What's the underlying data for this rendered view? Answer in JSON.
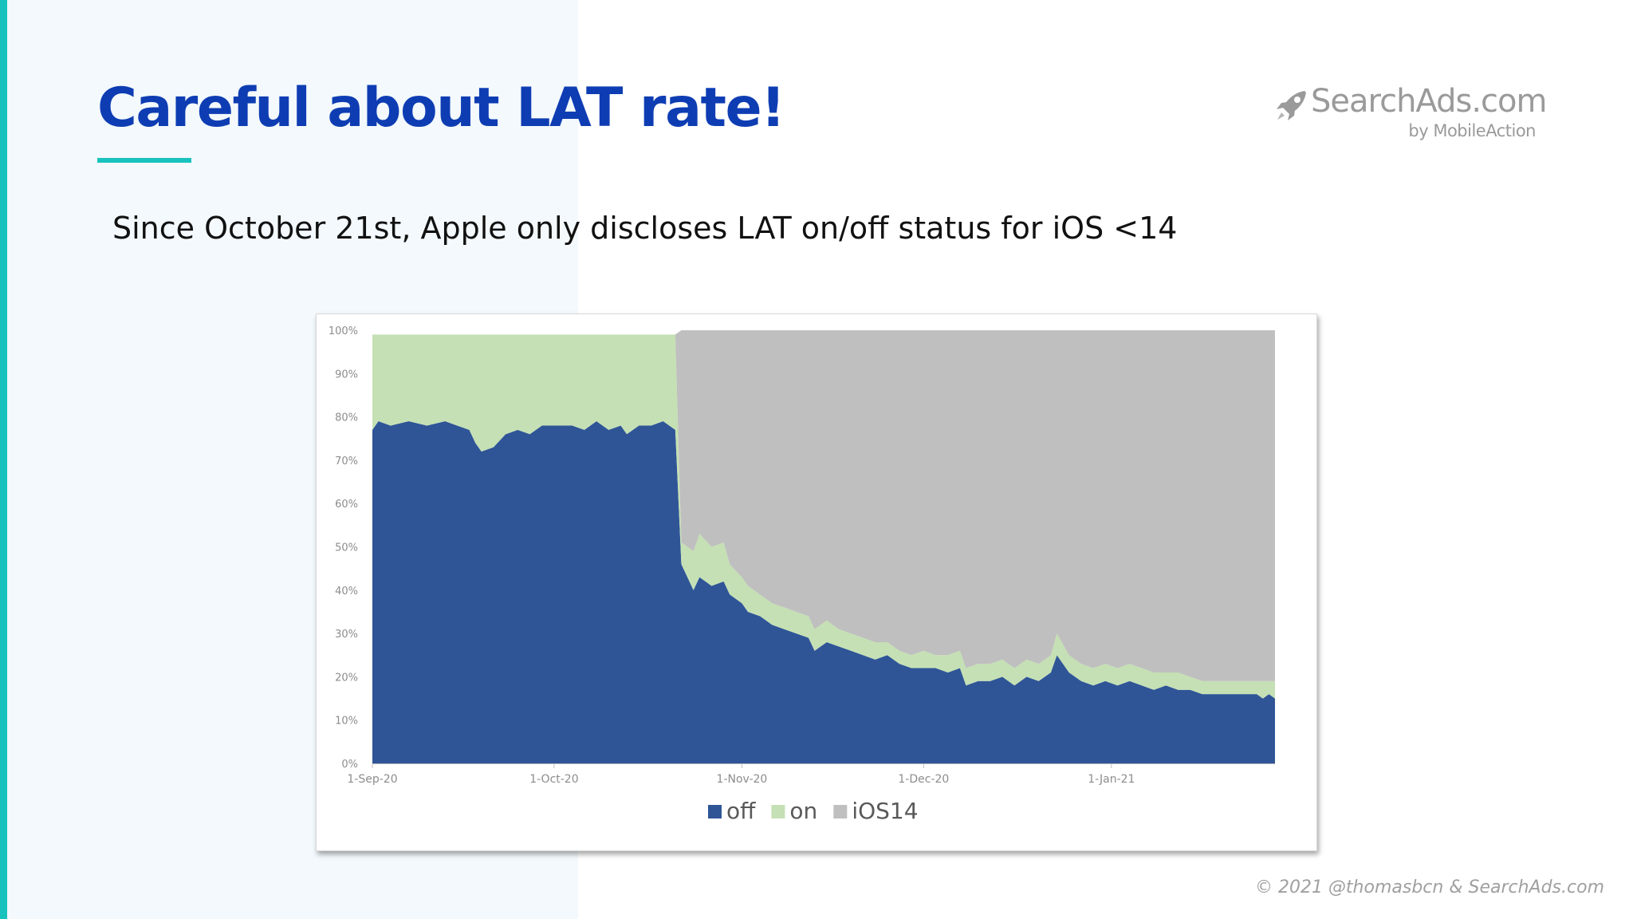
{
  "slide": {
    "title": "Careful about LAT rate!",
    "subtitle": "Since October 21st, Apple only discloses LAT on/off status for iOS <14",
    "footer": "© 2021 @thomasbcn & SearchAds.com"
  },
  "logo": {
    "main": "SearchAds.com",
    "sub": "by MobileAction",
    "icon": "rocket-icon"
  },
  "colors": {
    "title": "#0e3db3",
    "accent": "#19c3bd",
    "off": "#2f5597",
    "on": "#c5e0b4",
    "ios14": "#bfbfbf"
  },
  "chart_data": {
    "type": "area",
    "stacked": true,
    "x_labels": [
      "1-Sep-20",
      "1-Oct-20",
      "1-Nov-20",
      "1-Dec-20",
      "1-Jan-21"
    ],
    "y_ticks": [
      "0%",
      "10%",
      "20%",
      "30%",
      "40%",
      "50%",
      "60%",
      "70%",
      "80%",
      "90%",
      "100%"
    ],
    "ylim": [
      0,
      100
    ],
    "x_start": "1-Sep-20",
    "x_end": "28-Jan-21",
    "legend": [
      "off",
      "on",
      "iOS14"
    ],
    "legend_position": "bottom",
    "grid": false,
    "series": [
      {
        "name": "off",
        "color": "#2f5597",
        "points": [
          [
            "1-Sep-20",
            77
          ],
          [
            "2-Sep-20",
            79
          ],
          [
            "4-Sep-20",
            78
          ],
          [
            "7-Sep-20",
            79
          ],
          [
            "10-Sep-20",
            78
          ],
          [
            "13-Sep-20",
            79
          ],
          [
            "15-Sep-20",
            78
          ],
          [
            "17-Sep-20",
            77
          ],
          [
            "18-Sep-20",
            74
          ],
          [
            "19-Sep-20",
            72
          ],
          [
            "21-Sep-20",
            73
          ],
          [
            "23-Sep-20",
            76
          ],
          [
            "25-Sep-20",
            77
          ],
          [
            "27-Sep-20",
            76
          ],
          [
            "29-Sep-20",
            78
          ],
          [
            "1-Oct-20",
            78
          ],
          [
            "4-Oct-20",
            78
          ],
          [
            "6-Oct-20",
            77
          ],
          [
            "8-Oct-20",
            79
          ],
          [
            "10-Oct-20",
            77
          ],
          [
            "12-Oct-20",
            78
          ],
          [
            "13-Oct-20",
            76
          ],
          [
            "15-Oct-20",
            78
          ],
          [
            "17-Oct-20",
            78
          ],
          [
            "19-Oct-20",
            79
          ],
          [
            "21-Oct-20",
            77
          ],
          [
            "22-Oct-20",
            46
          ],
          [
            "24-Oct-20",
            40
          ],
          [
            "25-Oct-20",
            43
          ],
          [
            "27-Oct-20",
            41
          ],
          [
            "29-Oct-20",
            42
          ],
          [
            "30-Oct-20",
            39
          ],
          [
            "1-Nov-20",
            37
          ],
          [
            "2-Nov-20",
            35
          ],
          [
            "4-Nov-20",
            34
          ],
          [
            "6-Nov-20",
            32
          ],
          [
            "8-Nov-20",
            31
          ],
          [
            "10-Nov-20",
            30
          ],
          [
            "12-Nov-20",
            29
          ],
          [
            "13-Nov-20",
            26
          ],
          [
            "15-Nov-20",
            28
          ],
          [
            "17-Nov-20",
            27
          ],
          [
            "19-Nov-20",
            26
          ],
          [
            "21-Nov-20",
            25
          ],
          [
            "23-Nov-20",
            24
          ],
          [
            "25-Nov-20",
            25
          ],
          [
            "27-Nov-20",
            23
          ],
          [
            "29-Nov-20",
            22
          ],
          [
            "1-Dec-20",
            22
          ],
          [
            "3-Dec-20",
            22
          ],
          [
            "5-Dec-20",
            21
          ],
          [
            "7-Dec-20",
            22
          ],
          [
            "8-Dec-20",
            18
          ],
          [
            "10-Dec-20",
            19
          ],
          [
            "12-Dec-20",
            19
          ],
          [
            "14-Dec-20",
            20
          ],
          [
            "16-Dec-20",
            18
          ],
          [
            "18-Dec-20",
            20
          ],
          [
            "20-Dec-20",
            19
          ],
          [
            "22-Dec-20",
            21
          ],
          [
            "23-Dec-20",
            25
          ],
          [
            "25-Dec-20",
            21
          ],
          [
            "27-Dec-20",
            19
          ],
          [
            "29-Dec-20",
            18
          ],
          [
            "31-Dec-20",
            19
          ],
          [
            "2-Jan-21",
            18
          ],
          [
            "4-Jan-21",
            19
          ],
          [
            "6-Jan-21",
            18
          ],
          [
            "8-Jan-21",
            17
          ],
          [
            "10-Jan-21",
            18
          ],
          [
            "12-Jan-21",
            17
          ],
          [
            "14-Jan-21",
            17
          ],
          [
            "16-Jan-21",
            16
          ],
          [
            "18-Jan-21",
            16
          ],
          [
            "20-Jan-21",
            16
          ],
          [
            "22-Jan-21",
            16
          ],
          [
            "24-Jan-21",
            16
          ],
          [
            "25-Jan-21",
            16
          ],
          [
            "26-Jan-21",
            15
          ],
          [
            "27-Jan-21",
            16
          ],
          [
            "28-Jan-21",
            15
          ]
        ]
      },
      {
        "name": "on",
        "color": "#c5e0b4",
        "points": [
          [
            "1-Sep-20",
            22
          ],
          [
            "2-Sep-20",
            20
          ],
          [
            "4-Sep-20",
            21
          ],
          [
            "7-Sep-20",
            20
          ],
          [
            "10-Sep-20",
            21
          ],
          [
            "13-Sep-20",
            20
          ],
          [
            "15-Sep-20",
            21
          ],
          [
            "17-Sep-20",
            22
          ],
          [
            "18-Sep-20",
            25
          ],
          [
            "19-Sep-20",
            27
          ],
          [
            "21-Sep-20",
            26
          ],
          [
            "23-Sep-20",
            23
          ],
          [
            "25-Sep-20",
            22
          ],
          [
            "27-Sep-20",
            23
          ],
          [
            "29-Sep-20",
            21
          ],
          [
            "1-Oct-20",
            21
          ],
          [
            "4-Oct-20",
            21
          ],
          [
            "6-Oct-20",
            22
          ],
          [
            "8-Oct-20",
            20
          ],
          [
            "10-Oct-20",
            22
          ],
          [
            "12-Oct-20",
            21
          ],
          [
            "13-Oct-20",
            23
          ],
          [
            "15-Oct-20",
            21
          ],
          [
            "17-Oct-20",
            21
          ],
          [
            "19-Oct-20",
            20
          ],
          [
            "21-Oct-20",
            22
          ],
          [
            "22-Oct-20",
            5
          ],
          [
            "24-Oct-20",
            9
          ],
          [
            "25-Oct-20",
            10
          ],
          [
            "27-Oct-20",
            9
          ],
          [
            "29-Oct-20",
            9
          ],
          [
            "30-Oct-20",
            7
          ],
          [
            "1-Nov-20",
            6
          ],
          [
            "2-Nov-20",
            6
          ],
          [
            "4-Nov-20",
            5
          ],
          [
            "6-Nov-20",
            5
          ],
          [
            "8-Nov-20",
            5
          ],
          [
            "10-Nov-20",
            5
          ],
          [
            "12-Nov-20",
            5
          ],
          [
            "13-Nov-20",
            5
          ],
          [
            "15-Nov-20",
            5
          ],
          [
            "17-Nov-20",
            4
          ],
          [
            "19-Nov-20",
            4
          ],
          [
            "21-Nov-20",
            4
          ],
          [
            "23-Nov-20",
            4
          ],
          [
            "25-Nov-20",
            3
          ],
          [
            "27-Nov-20",
            3
          ],
          [
            "29-Nov-20",
            3
          ],
          [
            "1-Dec-20",
            4
          ],
          [
            "3-Dec-20",
            3
          ],
          [
            "5-Dec-20",
            4
          ],
          [
            "7-Dec-20",
            4
          ],
          [
            "8-Dec-20",
            4
          ],
          [
            "10-Dec-20",
            4
          ],
          [
            "12-Dec-20",
            4
          ],
          [
            "14-Dec-20",
            4
          ],
          [
            "16-Dec-20",
            4
          ],
          [
            "18-Dec-20",
            4
          ],
          [
            "20-Dec-20",
            4
          ],
          [
            "22-Dec-20",
            4
          ],
          [
            "23-Dec-20",
            5
          ],
          [
            "25-Dec-20",
            4
          ],
          [
            "27-Dec-20",
            4
          ],
          [
            "29-Dec-20",
            4
          ],
          [
            "31-Dec-20",
            4
          ],
          [
            "2-Jan-21",
            4
          ],
          [
            "4-Jan-21",
            4
          ],
          [
            "6-Jan-21",
            4
          ],
          [
            "8-Jan-21",
            4
          ],
          [
            "10-Jan-21",
            3
          ],
          [
            "12-Jan-21",
            4
          ],
          [
            "14-Jan-21",
            3
          ],
          [
            "16-Jan-21",
            3
          ],
          [
            "18-Jan-21",
            3
          ],
          [
            "20-Jan-21",
            3
          ],
          [
            "22-Jan-21",
            3
          ],
          [
            "24-Jan-21",
            3
          ],
          [
            "25-Jan-21",
            3
          ],
          [
            "26-Jan-21",
            4
          ],
          [
            "27-Jan-21",
            3
          ],
          [
            "28-Jan-21",
            4
          ]
        ]
      },
      {
        "name": "iOS14",
        "color": "#bfbfbf",
        "points": [
          [
            "1-Sep-20",
            0
          ],
          [
            "21-Oct-20",
            0
          ],
          [
            "22-Oct-20",
            49
          ],
          [
            "24-Oct-20",
            51
          ],
          [
            "25-Oct-20",
            47
          ],
          [
            "27-Oct-20",
            50
          ],
          [
            "29-Oct-20",
            49
          ],
          [
            "30-Oct-20",
            54
          ],
          [
            "1-Nov-20",
            57
          ],
          [
            "2-Nov-20",
            59
          ],
          [
            "4-Nov-20",
            61
          ],
          [
            "6-Nov-20",
            63
          ],
          [
            "8-Nov-20",
            64
          ],
          [
            "10-Nov-20",
            65
          ],
          [
            "12-Nov-20",
            66
          ],
          [
            "13-Nov-20",
            69
          ],
          [
            "15-Nov-20",
            67
          ],
          [
            "17-Nov-20",
            69
          ],
          [
            "19-Nov-20",
            70
          ],
          [
            "21-Nov-20",
            71
          ],
          [
            "23-Nov-20",
            72
          ],
          [
            "25-Nov-20",
            72
          ],
          [
            "27-Nov-20",
            74
          ],
          [
            "29-Nov-20",
            75
          ],
          [
            "1-Dec-20",
            74
          ],
          [
            "3-Dec-20",
            75
          ],
          [
            "5-Dec-20",
            75
          ],
          [
            "7-Dec-20",
            74
          ],
          [
            "8-Dec-20",
            78
          ],
          [
            "10-Dec-20",
            77
          ],
          [
            "12-Dec-20",
            77
          ],
          [
            "14-Dec-20",
            76
          ],
          [
            "16-Dec-20",
            78
          ],
          [
            "18-Dec-20",
            76
          ],
          [
            "20-Dec-20",
            77
          ],
          [
            "22-Dec-20",
            75
          ],
          [
            "23-Dec-20",
            70
          ],
          [
            "25-Dec-20",
            75
          ],
          [
            "27-Dec-20",
            77
          ],
          [
            "29-Dec-20",
            78
          ],
          [
            "31-Dec-20",
            77
          ],
          [
            "2-Jan-21",
            78
          ],
          [
            "4-Jan-21",
            77
          ],
          [
            "6-Jan-21",
            78
          ],
          [
            "8-Jan-21",
            79
          ],
          [
            "10-Jan-21",
            79
          ],
          [
            "12-Jan-21",
            79
          ],
          [
            "14-Jan-21",
            80
          ],
          [
            "16-Jan-21",
            81
          ],
          [
            "18-Jan-21",
            81
          ],
          [
            "20-Jan-21",
            81
          ],
          [
            "22-Jan-21",
            81
          ],
          [
            "24-Jan-21",
            81
          ],
          [
            "25-Jan-21",
            81
          ],
          [
            "26-Jan-21",
            81
          ],
          [
            "27-Jan-21",
            81
          ],
          [
            "28-Jan-21",
            81
          ]
        ]
      }
    ]
  }
}
